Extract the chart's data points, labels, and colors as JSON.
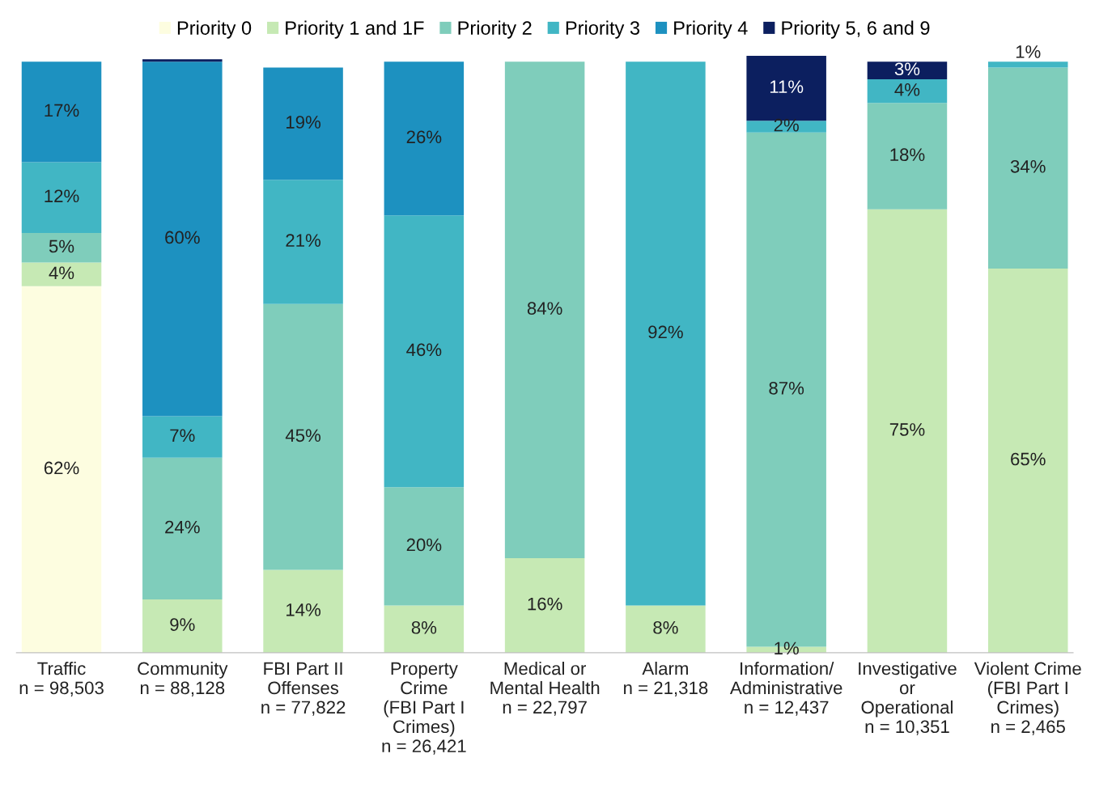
{
  "chart_data": {
    "type": "bar",
    "stacked": true,
    "legend": "top",
    "grid": false,
    "categories": [
      "Traffic\nn = 98,503",
      "Community\nn = 88,128",
      "FBI Part II\nOffenses\nn = 77,822",
      "Property\nCrime\n(FBI Part I\nCrimes)\nn = 26,421",
      "Medical or\nMental Health\nn = 22,797",
      "Alarm\nn = 21,318",
      "Information/\nAdministrative\nn = 12,437",
      "Investigative\nor\nOperational\nn = 10,351",
      "Violent Crime\n(FBI Part I\nCrimes)\nn = 2,465"
    ],
    "series": [
      {
        "name": "Priority 0",
        "color": "#fdfde0",
        "values": [
          62,
          null,
          null,
          null,
          null,
          null,
          null,
          null,
          null
        ],
        "value_labels": [
          "62%",
          null,
          null,
          null,
          null,
          null,
          null,
          null,
          null
        ]
      },
      {
        "name": "Priority 1 and 1F",
        "color": "#c6e9b4",
        "values": [
          4,
          9,
          14,
          8,
          16,
          8,
          1,
          75,
          65
        ],
        "value_labels": [
          "4%",
          "9%",
          "14%",
          "8%",
          "16%",
          "8%",
          "1%",
          "75%",
          "65%"
        ]
      },
      {
        "name": "Priority 2",
        "color": "#7fcdbb",
        "values": [
          5,
          24,
          45,
          20,
          84,
          null,
          87,
          18,
          34
        ],
        "value_labels": [
          "5%",
          "24%",
          "45%",
          "20%",
          "84%",
          null,
          "87%",
          "18%",
          "34%"
        ]
      },
      {
        "name": "Priority 3",
        "color": "#41b6c4",
        "values": [
          12,
          7,
          21,
          46,
          null,
          92,
          2,
          4,
          1
        ],
        "value_labels": [
          "12%",
          "7%",
          "21%",
          "46%",
          null,
          "92%",
          "2%",
          "4%",
          "1%"
        ]
      },
      {
        "name": "Priority 4",
        "color": "#1d91c0",
        "values": [
          17,
          60,
          19,
          26,
          null,
          null,
          null,
          null,
          null
        ],
        "value_labels": [
          "17%",
          "60%",
          "19%",
          "26%",
          null,
          null,
          null,
          null,
          null
        ]
      },
      {
        "name": "Priority 5, 6 and 9",
        "color": "#0c1f5f",
        "values": [
          null,
          0.4,
          null,
          null,
          null,
          null,
          11,
          3,
          null
        ],
        "value_labels": [
          null,
          null,
          null,
          null,
          null,
          null,
          "11%",
          "3%",
          null
        ]
      }
    ]
  }
}
